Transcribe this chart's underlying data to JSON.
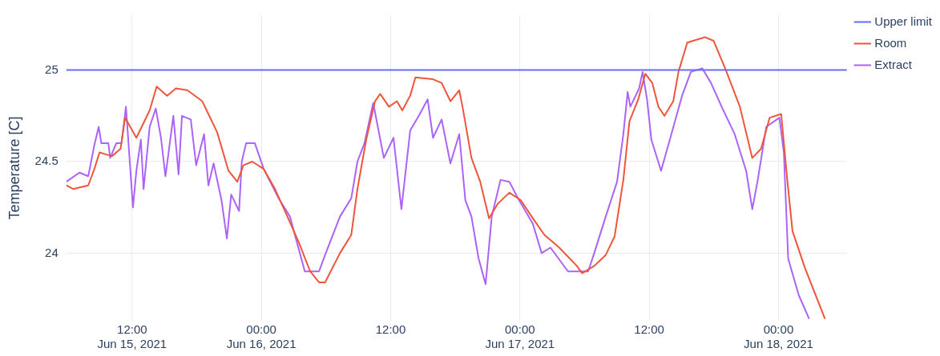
{
  "chart_data": {
    "type": "line",
    "ylabel": "Temperature [C]",
    "legend": "top right",
    "grid": true,
    "marker": "none",
    "line_style": "solid",
    "xlim": [
      "2021-06-15T05:54",
      "2021-06-18T06:21"
    ],
    "xticks": [
      {
        "value": "2021-06-15T12:00",
        "label": "12:00\nJun 15, 2021"
      },
      {
        "value": "2021-06-16T00:00",
        "label": "00:00\nJun 16, 2021"
      },
      {
        "value": "2021-06-16T12:00",
        "label": "12:00"
      },
      {
        "value": "2021-06-17T00:00",
        "label": "00:00\nJun 17, 2021"
      },
      {
        "value": "2021-06-17T12:00",
        "label": "12:00"
      },
      {
        "value": "2021-06-18T00:00",
        "label": "00:00\nJun 18, 2021"
      }
    ],
    "ylim": [
      23.63,
      25.3
    ],
    "yticks": [
      24,
      24.5,
      25
    ],
    "series": [
      {
        "name": "Upper limit",
        "color": "#636efa",
        "x": [
          "2021-06-15T05:54",
          "2021-06-18T06:21"
        ],
        "values": [
          25,
          25
        ]
      },
      {
        "name": "Room",
        "color": "#ef553b",
        "x": [
          "2021-06-15T05:54",
          "2021-06-15T06:33",
          "2021-06-15T07:56",
          "2021-06-15T08:30",
          "2021-06-15T08:59",
          "2021-06-15T09:33",
          "2021-06-15T10:08",
          "2021-06-15T10:56",
          "2021-06-15T11:21",
          "2021-06-15T12:24",
          "2021-06-15T13:38",
          "2021-06-15T14:17",
          "2021-06-15T15:15",
          "2021-06-15T16:04",
          "2021-06-15T17:08",
          "2021-06-15T18:31",
          "2021-06-15T19:54",
          "2021-06-15T20:57",
          "2021-06-15T21:46",
          "2021-06-15T22:20",
          "2021-06-15T23:09",
          "2021-06-16T00:13",
          "2021-06-16T01:16",
          "2021-06-16T02:25",
          "2021-06-16T03:28",
          "2021-06-16T04:32",
          "2021-06-16T05:21",
          "2021-06-16T05:55",
          "2021-06-16T07:18",
          "2021-06-16T08:21",
          "2021-06-16T08:55",
          "2021-06-16T09:44",
          "2021-06-16T10:33",
          "2021-06-16T11:02",
          "2021-06-16T11:51",
          "2021-06-16T12:35",
          "2021-06-16T13:05",
          "2021-06-16T13:49",
          "2021-06-16T14:18",
          "2021-06-16T15:56",
          "2021-06-16T16:44",
          "2021-06-16T17:33",
          "2021-06-16T18:22",
          "2021-06-16T18:42",
          "2021-06-16T19:30",
          "2021-06-16T20:19",
          "2021-06-16T21:08",
          "2021-06-16T21:57",
          "2021-06-16T23:01",
          "2021-06-17T00:04",
          "2021-06-17T01:12",
          "2021-06-17T02:16",
          "2021-06-17T03:39",
          "2021-06-17T05:17",
          "2021-06-17T05:46",
          "2021-06-17T06:54",
          "2021-06-17T07:58",
          "2021-06-17T08:47",
          "2021-06-17T09:36",
          "2021-06-17T10:10",
          "2021-06-17T10:59",
          "2021-06-17T11:38",
          "2021-06-17T12:17",
          "2021-06-17T12:51",
          "2021-06-17T13:25",
          "2021-06-17T14:14",
          "2021-06-17T14:43",
          "2021-06-17T15:32",
          "2021-06-17T17:10",
          "2021-06-17T17:59",
          "2021-06-17T19:07",
          "2021-06-17T20:25",
          "2021-06-17T21:34",
          "2021-06-17T22:23",
          "2021-06-17T23:11",
          "2021-06-18T00:15",
          "2021-06-18T00:49",
          "2021-06-18T01:18",
          "2021-06-18T02:27",
          "2021-06-18T04:19"
        ],
        "values": [
          24.37,
          24.35,
          24.37,
          24.46,
          24.55,
          24.54,
          24.53,
          24.57,
          24.74,
          24.63,
          24.78,
          24.91,
          24.86,
          24.9,
          24.89,
          24.83,
          24.66,
          24.45,
          24.39,
          24.48,
          24.5,
          24.46,
          24.35,
          24.2,
          24.06,
          23.9,
          23.84,
          23.84,
          24.0,
          24.1,
          24.35,
          24.62,
          24.83,
          24.87,
          24.8,
          24.83,
          24.78,
          24.86,
          24.96,
          24.95,
          24.93,
          24.83,
          24.89,
          24.79,
          24.52,
          24.39,
          24.19,
          24.27,
          24.33,
          24.29,
          24.19,
          24.1,
          24.03,
          23.93,
          23.89,
          23.93,
          23.99,
          24.09,
          24.4,
          24.72,
          24.84,
          24.98,
          24.93,
          24.8,
          24.75,
          24.83,
          24.99,
          25.15,
          25.18,
          25.16,
          25.0,
          24.8,
          24.52,
          24.57,
          24.74,
          24.76,
          24.4,
          24.12,
          23.92,
          23.64
        ]
      },
      {
        "name": "Extract",
        "color": "#ab63fa",
        "x": [
          "2021-06-15T05:54",
          "2021-06-15T07:07",
          "2021-06-15T07:56",
          "2021-06-15T08:30",
          "2021-06-15T08:54",
          "2021-06-15T09:09",
          "2021-06-15T09:48",
          "2021-06-15T09:58",
          "2021-06-15T10:32",
          "2021-06-15T11:01",
          "2021-06-15T11:26",
          "2021-06-15T11:50",
          "2021-06-15T12:05",
          "2021-06-15T12:24",
          "2021-06-15T12:49",
          "2021-06-15T13:04",
          "2021-06-15T13:38",
          "2021-06-15T14:12",
          "2021-06-15T14:41",
          "2021-06-15T15:06",
          "2021-06-15T15:50",
          "2021-06-15T16:19",
          "2021-06-15T16:38",
          "2021-06-15T17:27",
          "2021-06-15T17:57",
          "2021-06-15T18:41",
          "2021-06-15T19:05",
          "2021-06-15T19:34",
          "2021-06-15T20:18",
          "2021-06-15T20:48",
          "2021-06-15T21:12",
          "2021-06-15T21:56",
          "2021-06-15T22:11",
          "2021-06-15T22:35",
          "2021-06-15T23:24",
          "2021-06-16T00:13",
          "2021-06-16T01:36",
          "2021-06-16T02:39",
          "2021-06-16T04:02",
          "2021-06-16T05:21",
          "2021-06-16T05:55",
          "2021-06-16T07:18",
          "2021-06-16T08:21",
          "2021-06-16T08:55",
          "2021-06-16T09:34",
          "2021-06-16T10:23",
          "2021-06-16T11:22",
          "2021-06-16T12:16",
          "2021-06-16T13:00",
          "2021-06-16T13:49",
          "2021-06-16T14:37",
          "2021-06-16T15:26",
          "2021-06-16T15:56",
          "2021-06-16T16:44",
          "2021-06-16T17:33",
          "2021-06-16T18:22",
          "2021-06-16T18:56",
          "2021-06-16T19:30",
          "2021-06-16T20:10",
          "2021-06-16T20:49",
          "2021-06-16T21:23",
          "2021-06-16T22:12",
          "2021-06-16T23:01",
          "2021-06-16T23:49",
          "2021-06-17T01:12",
          "2021-06-17T02:01",
          "2021-06-17T02:50",
          "2021-06-17T04:28",
          "2021-06-17T05:31",
          "2021-06-17T06:20",
          "2021-06-17T06:54",
          "2021-06-17T07:58",
          "2021-06-17T09:01",
          "2021-06-17T09:36",
          "2021-06-17T10:00",
          "2021-06-17T10:15",
          "2021-06-17T11:04",
          "2021-06-17T11:23",
          "2021-06-17T11:48",
          "2021-06-17T12:12",
          "2021-06-17T13:06",
          "2021-06-17T13:55",
          "2021-06-17T15:03",
          "2021-06-17T15:52",
          "2021-06-17T16:55",
          "2021-06-17T17:44",
          "2021-06-17T18:48",
          "2021-06-17T19:56",
          "2021-06-17T21:00",
          "2021-06-17T21:34",
          "2021-06-17T22:03",
          "2021-06-17T22:52",
          "2021-06-18T00:05",
          "2021-06-18T00:30",
          "2021-06-18T00:54",
          "2021-06-18T01:53",
          "2021-06-18T02:51"
        ],
        "values": [
          24.39,
          24.44,
          24.42,
          24.59,
          24.69,
          24.6,
          24.6,
          24.52,
          24.6,
          24.6,
          24.8,
          24.46,
          24.25,
          24.45,
          24.62,
          24.35,
          24.69,
          24.79,
          24.63,
          24.42,
          24.75,
          24.43,
          24.75,
          24.73,
          24.48,
          24.65,
          24.37,
          24.49,
          24.29,
          24.08,
          24.32,
          24.23,
          24.5,
          24.6,
          24.6,
          24.46,
          24.3,
          24.2,
          23.9,
          23.9,
          23.99,
          24.2,
          24.3,
          24.5,
          24.6,
          24.82,
          24.52,
          24.63,
          24.24,
          24.67,
          24.75,
          24.84,
          24.63,
          24.73,
          24.49,
          24.65,
          24.29,
          24.2,
          23.97,
          23.83,
          24.2,
          24.4,
          24.39,
          24.3,
          24.16,
          24.0,
          24.03,
          23.9,
          23.9,
          23.9,
          24.0,
          24.2,
          24.39,
          24.65,
          24.88,
          24.8,
          24.9,
          24.99,
          24.84,
          24.62,
          24.45,
          24.62,
          24.86,
          24.99,
          25.01,
          24.93,
          24.79,
          24.65,
          24.45,
          24.24,
          24.39,
          24.69,
          24.74,
          24.55,
          23.97,
          23.77,
          23.64
        ]
      }
    ]
  }
}
